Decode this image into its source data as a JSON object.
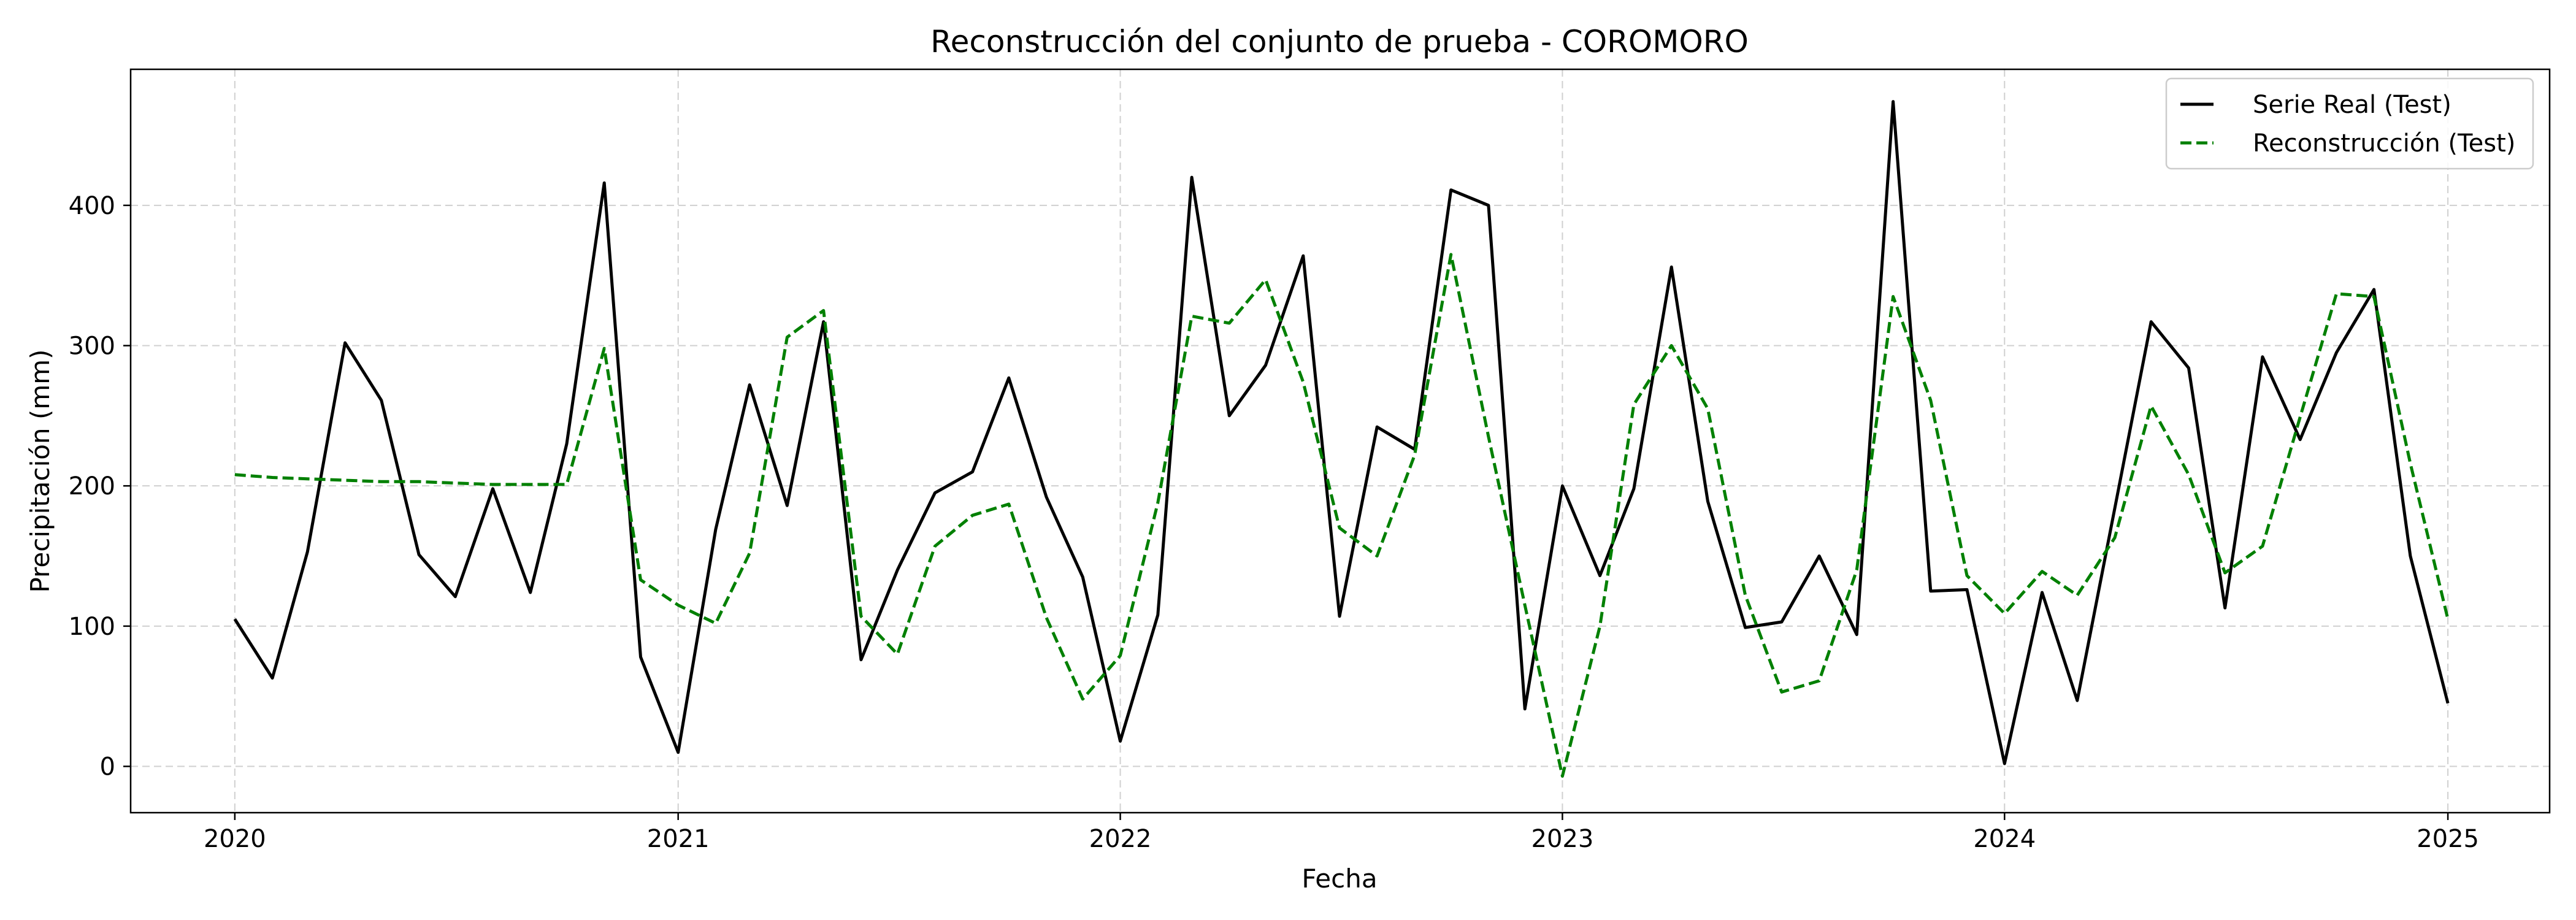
{
  "chart_data": {
    "type": "line",
    "title": "Reconstrucción del conjunto de prueba - COROMORO",
    "xlabel": "Fecha",
    "ylabel": "Precipitación (mm)",
    "x_tick_labels": [
      "2020",
      "2021",
      "2022",
      "2023",
      "2024",
      "2025"
    ],
    "y_ticks": [
      0,
      100,
      200,
      300,
      400
    ],
    "ylim": [
      -33,
      497
    ],
    "xlim": [
      "2019-10-07",
      "2025-03-26"
    ],
    "grid": true,
    "legend_position": "top-right",
    "x": [
      "2020-01",
      "2020-02",
      "2020-03",
      "2020-04",
      "2020-05",
      "2020-06",
      "2020-07",
      "2020-08",
      "2020-09",
      "2020-10",
      "2020-11",
      "2020-12",
      "2021-01",
      "2021-02",
      "2021-03",
      "2021-04",
      "2021-05",
      "2021-06",
      "2021-07",
      "2021-08",
      "2021-09",
      "2021-10",
      "2021-11",
      "2021-12",
      "2022-01",
      "2022-02",
      "2022-03",
      "2022-04",
      "2022-05",
      "2022-06",
      "2022-07",
      "2022-08",
      "2022-09",
      "2022-10",
      "2022-11",
      "2022-12",
      "2023-01",
      "2023-02",
      "2023-03",
      "2023-04",
      "2023-05",
      "2023-06",
      "2023-07",
      "2023-08",
      "2023-09",
      "2023-10",
      "2023-11",
      "2023-12",
      "2024-01",
      "2024-02",
      "2024-03",
      "2024-04",
      "2024-05",
      "2024-06",
      "2024-07",
      "2024-08",
      "2024-09",
      "2024-10",
      "2024-11",
      "2024-12",
      "2025-01"
    ],
    "series": [
      {
        "name": "Serie Real (Test)",
        "color": "#000000",
        "style": "solid",
        "values": [
          105,
          63,
          153,
          302,
          261,
          151,
          121,
          198,
          124,
          230,
          416,
          78,
          10,
          169,
          272,
          186,
          317,
          76,
          140,
          195,
          210,
          277,
          192,
          135,
          18,
          108,
          420,
          250,
          286,
          364,
          107,
          242,
          226,
          411,
          400,
          41,
          200,
          136,
          198,
          356,
          189,
          99,
          103,
          150,
          94,
          474,
          125,
          126,
          2,
          124,
          47,
          184,
          317,
          284,
          113,
          292,
          233,
          295,
          340,
          150,
          45
        ]
      },
      {
        "name": "Reconstrucción (Test)",
        "color": "#008000",
        "style": "dashed",
        "values": [
          208,
          206,
          205,
          204,
          203,
          203,
          202,
          201,
          201,
          201,
          298,
          133,
          115,
          102,
          152,
          306,
          325,
          107,
          80,
          157,
          179,
          187,
          106,
          48,
          79,
          188,
          321,
          316,
          347,
          274,
          170,
          150,
          222,
          365,
          235,
          115,
          -7,
          100,
          258,
          300,
          255,
          122,
          53,
          61,
          140,
          335,
          261,
          136,
          109,
          139,
          122,
          163,
          257,
          208,
          138,
          157,
          249,
          337,
          335,
          216,
          105
        ]
      }
    ]
  }
}
